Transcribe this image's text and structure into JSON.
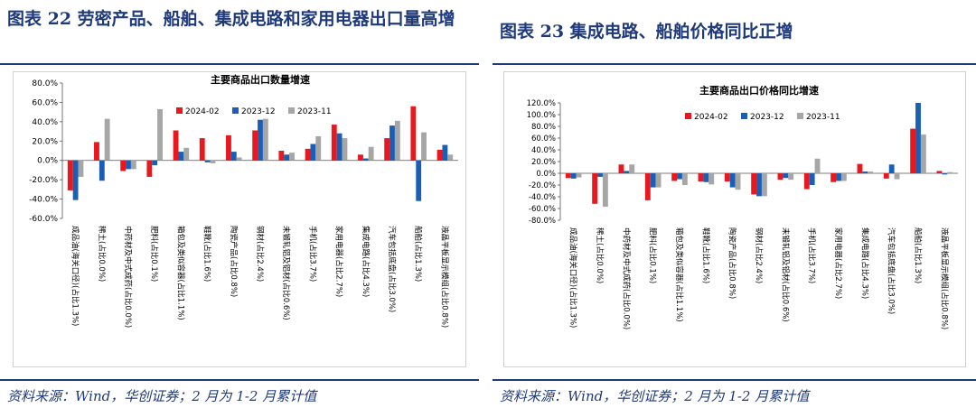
{
  "left": {
    "figure_title": "图表 22  劳密产品、船舶、集成电路和家用电器出口量高增",
    "source": "资料来源：Wind，华创证券；2 月为 1-2 月累计值"
  },
  "right": {
    "figure_title": "图表 23  集成电路、船舶价格同比正增",
    "source": "资料来源：Wind，华创证券；2 月为 1-2 月累计值"
  },
  "colors": {
    "s1": "#e8181e",
    "s2": "#1a5fb4",
    "s3": "#a6a6a6",
    "title": "#1f3a7a"
  },
  "chart_data": [
    {
      "type": "bar",
      "title": "主要商品出口数量增速",
      "ylim": [
        -60,
        80
      ],
      "yticks": [
        -60,
        -40,
        -20,
        0,
        20,
        40,
        60,
        80
      ],
      "yticklabels": [
        "-60.0%",
        "-40.0%",
        "-20.0%",
        "0.0%",
        "20.0%",
        "40.0%",
        "60.0%",
        "80.0%"
      ],
      "legend_position": "top-center",
      "categories": [
        "成品油(海关口径)(占比1.3%)",
        "稀土(占比0.0%)",
        "中药材及中式成药(占比0.0%)",
        "肥料(占比0.1%)",
        "箱包及类似容器(占比1.1%)",
        "鞋靴(占比1.6%)",
        "陶瓷产品(占比0.8%)",
        "钢材(占比2.4%)",
        "未锻轧铝及铝材(占比0.6%)",
        "手机(占比3.7%)",
        "家用电器(占比2.7%)",
        "集成电路(占比4.3%)",
        "汽车包括底盘(占比3.0%)",
        "船舶(占比1.3%)",
        "液晶平板显示模组(占比0.8%)"
      ],
      "series": [
        {
          "name": "2024-02",
          "values": [
            -31,
            19,
            -11,
            -17,
            31,
            23,
            26,
            31,
            10,
            12,
            37,
            6,
            23,
            56,
            11
          ]
        },
        {
          "name": "2023-12",
          "values": [
            -41,
            -21,
            -9,
            -5,
            9,
            -2,
            9,
            42,
            6,
            17,
            28,
            2,
            36,
            -42,
            16
          ]
        },
        {
          "name": "2023-11",
          "values": [
            -17,
            43,
            -9,
            53,
            13,
            -3,
            3,
            43,
            8,
            25,
            23,
            14,
            41,
            29,
            6
          ]
        }
      ]
    },
    {
      "type": "bar",
      "title": "主要商品出口价格同比增速",
      "ylim": [
        -80,
        120
      ],
      "yticks": [
        -80,
        -60,
        -40,
        -20,
        0,
        20,
        40,
        60,
        80,
        100,
        120
      ],
      "yticklabels": [
        "-80.0%",
        "-60.0%",
        "-40.0%",
        "-20.0%",
        "0.0%",
        "20.0%",
        "40.0%",
        "60.0%",
        "80.0%",
        "100.0%",
        "120.0%"
      ],
      "legend_position": "top-center",
      "categories": [
        "成品油(海关口径)(占比1.3%)",
        "稀土(占比0.0%)",
        "中药材及中式成药(占比0.0%)",
        "肥料(占比0.1%)",
        "箱包及类似容器(占比1.1%)",
        "鞋靴(占比1.6%)",
        "陶瓷产品(占比0.8%)",
        "钢材(占比2.4%)",
        "未锻轧铝及铝材(占比0.6%)",
        "手机(占比3.7%)",
        "家用电器(占比2.7%)",
        "集成电路(占比4.3%)",
        "汽车包括底盘(占比3.0%)",
        "船舶(占比1.3%)",
        "液晶平板显示模组(占比0.8%)"
      ],
      "series": [
        {
          "name": "2024-02",
          "values": [
            -8,
            -52,
            15,
            -46,
            -13,
            -14,
            -14,
            -36,
            -11,
            -27,
            -15,
            16,
            -9,
            76,
            4
          ]
        },
        {
          "name": "2023-12",
          "values": [
            -9,
            -6,
            4,
            -24,
            -10,
            -15,
            -24,
            -39,
            -8,
            -20,
            -13,
            3,
            15,
            120,
            -2
          ]
        },
        {
          "name": "2023-11",
          "values": [
            -7,
            -57,
            15,
            -24,
            -20,
            -19,
            -28,
            -39,
            -11,
            25,
            -13,
            3,
            -10,
            66,
            2
          ]
        }
      ]
    }
  ]
}
